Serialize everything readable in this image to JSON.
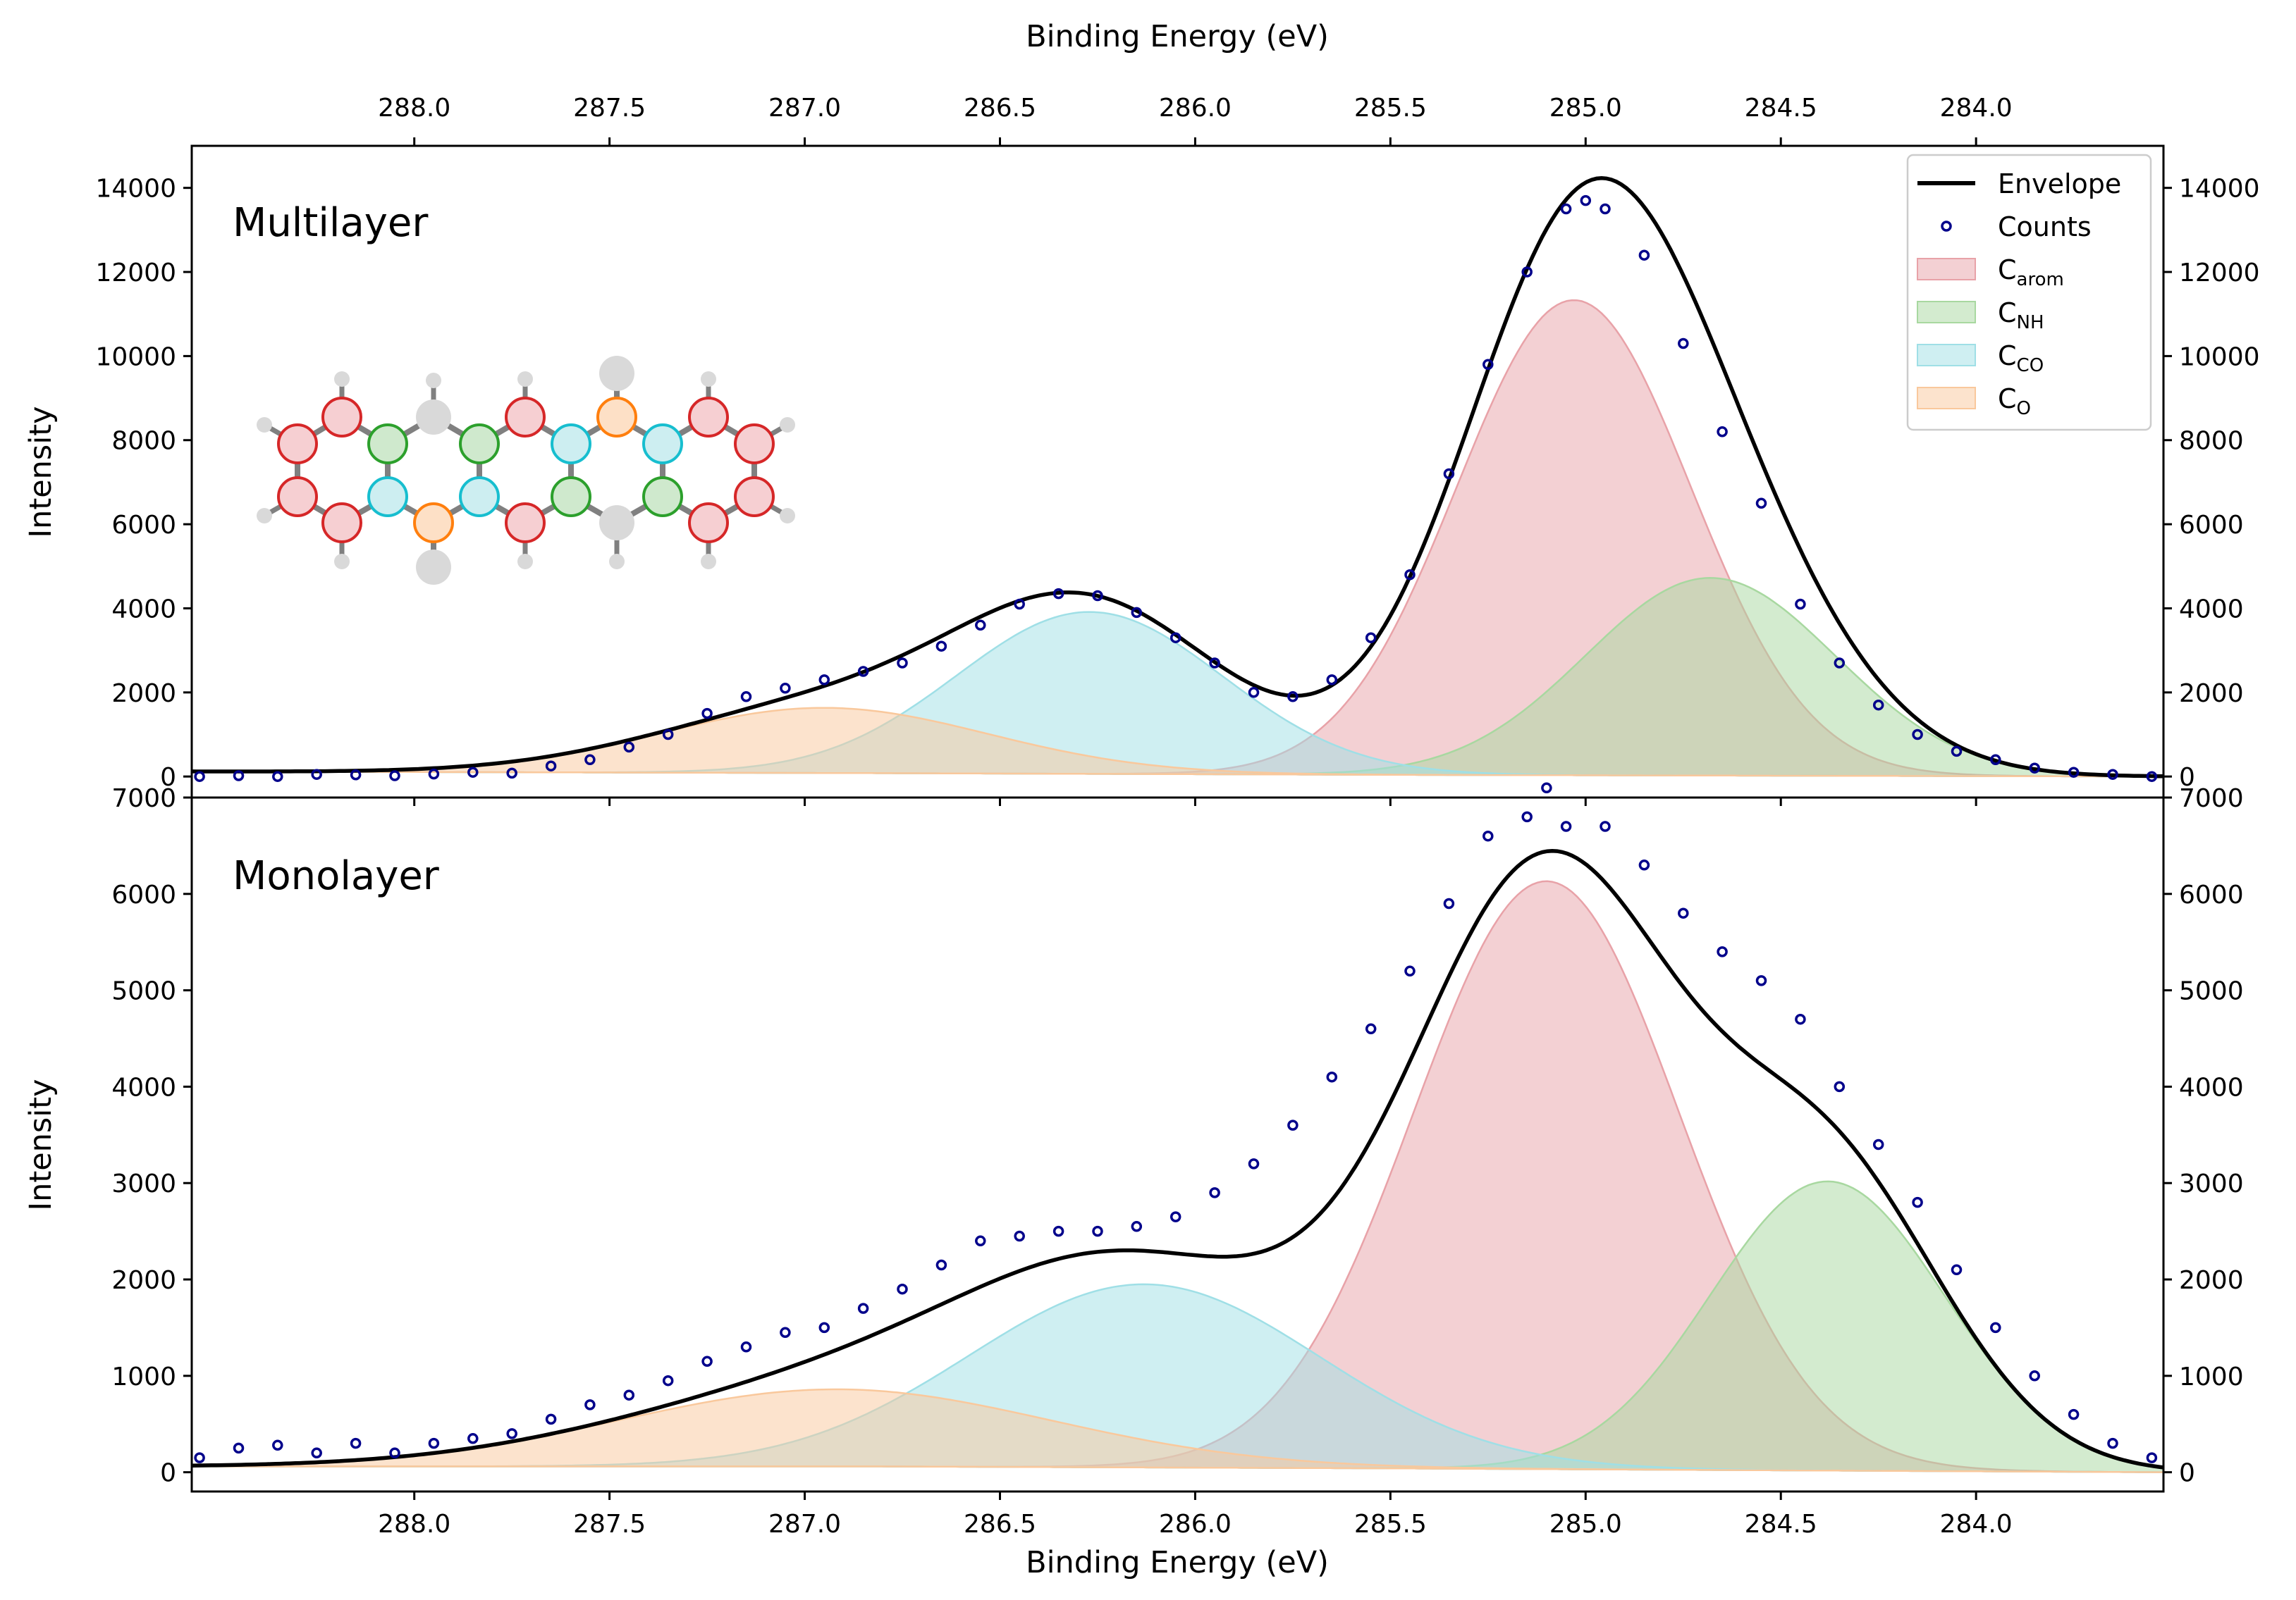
{
  "chart_data": [
    {
      "type": "area",
      "title": "Multilayer",
      "xlabel": "Binding Energy (eV)",
      "x2label": "Binding Energy (eV)",
      "ylabel": "Intensity",
      "xlim": [
        288.57,
        283.52
      ],
      "x_reversed": true,
      "ylim": [
        -500,
        15000
      ],
      "x_ticks": [
        "288.0",
        "287.5",
        "287.0",
        "286.5",
        "286.0",
        "285.5",
        "285.0",
        "284.5",
        "284.0"
      ],
      "y_ticks": [
        "0",
        "2000",
        "4000",
        "6000",
        "8000",
        "10000",
        "12000",
        "14000"
      ],
      "legend_position": "top-right",
      "legend": [
        {
          "name": "Envelope",
          "kind": "line",
          "color": "#000000"
        },
        {
          "name": "Counts",
          "kind": "marker",
          "color": "#00008b"
        },
        {
          "name": "C",
          "sub": "arom",
          "kind": "area",
          "color": "#e8a2a8"
        },
        {
          "name": "C",
          "sub": "NH",
          "kind": "area",
          "color": "#a8d8a0"
        },
        {
          "name": "C",
          "sub": "CO",
          "kind": "area",
          "color": "#9fdfe6"
        },
        {
          "name": "C",
          "sub": "O",
          "kind": "area",
          "color": "#f9c89c"
        }
      ],
      "components": [
        {
          "key": "C_arom",
          "color": "#e8a2a8",
          "center": 285.03,
          "amplitude": 11300,
          "sigma": 0.3
        },
        {
          "key": "C_NH",
          "color": "#a8d8a0",
          "center": 284.68,
          "amplitude": 4700,
          "sigma": 0.32
        },
        {
          "key": "C_CO",
          "color": "#9fdfe6",
          "center": 286.27,
          "amplitude": 3850,
          "sigma": 0.34
        },
        {
          "key": "C_O",
          "color": "#f9c89c",
          "center": 286.95,
          "amplitude": 1550,
          "sigma": 0.42
        }
      ],
      "background": [
        {
          "x": 288.57,
          "y": 120
        },
        {
          "x": 286.8,
          "y": 80
        },
        {
          "x": 285.5,
          "y": 40
        },
        {
          "x": 283.52,
          "y": 0
        }
      ],
      "counts": {
        "x": [
          288.55,
          288.45,
          288.35,
          288.25,
          288.15,
          288.05,
          287.95,
          287.85,
          287.75,
          287.65,
          287.55,
          287.45,
          287.35,
          287.25,
          287.15,
          287.05,
          286.95,
          286.85,
          286.75,
          286.65,
          286.55,
          286.45,
          286.35,
          286.25,
          286.15,
          286.05,
          285.95,
          285.85,
          285.75,
          285.65,
          285.55,
          285.45,
          285.35,
          285.25,
          285.15,
          285.05,
          285.0,
          284.95,
          284.85,
          284.75,
          284.65,
          284.55,
          284.45,
          284.35,
          284.25,
          284.15,
          284.05,
          283.95,
          283.85,
          283.75,
          283.65,
          283.55
        ],
        "y": [
          0,
          20,
          0,
          50,
          40,
          20,
          60,
          100,
          80,
          250,
          400,
          700,
          1000,
          1500,
          1900,
          2100,
          2300,
          2500,
          2700,
          3100,
          3600,
          4100,
          4350,
          4300,
          3900,
          3300,
          2700,
          2000,
          1900,
          2300,
          3300,
          4800,
          7200,
          9800,
          12000,
          13500,
          13700,
          13500,
          12400,
          10300,
          8200,
          6500,
          4100,
          2700,
          1700,
          1000,
          600,
          400,
          200,
          100,
          50,
          0
        ]
      }
    },
    {
      "type": "area",
      "title": "Monolayer",
      "xlabel": "Binding Energy (eV)",
      "ylabel": "Intensity",
      "xlim": [
        288.57,
        283.52
      ],
      "x_reversed": true,
      "ylim": [
        -200,
        7000
      ],
      "x_ticks": [
        "288.0",
        "287.5",
        "287.0",
        "286.5",
        "286.0",
        "285.5",
        "285.0",
        "284.5",
        "284.0"
      ],
      "y_ticks": [
        "0",
        "1000",
        "2000",
        "3000",
        "4000",
        "5000",
        "6000",
        "7000"
      ],
      "components": [
        {
          "key": "C_arom",
          "color": "#e8a2a8",
          "center": 285.1,
          "amplitude": 6100,
          "sigma": 0.34
        },
        {
          "key": "C_NH",
          "color": "#a8d8a0",
          "center": 284.38,
          "amplitude": 3000,
          "sigma": 0.3
        },
        {
          "key": "C_CO",
          "color": "#9fdfe6",
          "center": 286.13,
          "amplitude": 1900,
          "sigma": 0.45
        },
        {
          "key": "C_O",
          "color": "#f9c89c",
          "center": 286.92,
          "amplitude": 800,
          "sigma": 0.55
        }
      ],
      "background": [
        {
          "x": 288.57,
          "y": 60
        },
        {
          "x": 286.8,
          "y": 60
        },
        {
          "x": 285.5,
          "y": 40
        },
        {
          "x": 283.52,
          "y": 0
        }
      ],
      "counts": {
        "x": [
          288.55,
          288.45,
          288.35,
          288.25,
          288.15,
          288.05,
          287.95,
          287.85,
          287.75,
          287.65,
          287.55,
          287.45,
          287.35,
          287.25,
          287.15,
          287.05,
          286.95,
          286.85,
          286.75,
          286.65,
          286.55,
          286.45,
          286.35,
          286.25,
          286.15,
          286.05,
          285.95,
          285.85,
          285.75,
          285.65,
          285.55,
          285.45,
          285.35,
          285.25,
          285.15,
          285.1,
          285.05,
          284.95,
          284.85,
          284.75,
          284.65,
          284.55,
          284.45,
          284.35,
          284.25,
          284.15,
          284.05,
          283.95,
          283.85,
          283.75,
          283.65,
          283.55
        ],
        "y": [
          150,
          250,
          280,
          200,
          300,
          200,
          300,
          350,
          400,
          550,
          700,
          800,
          950,
          1150,
          1300,
          1450,
          1500,
          1700,
          1900,
          2150,
          2400,
          2450,
          2500,
          2500,
          2550,
          2650,
          2900,
          3200,
          3600,
          4100,
          4600,
          5200,
          5900,
          6600,
          6800,
          7100,
          6700,
          6700,
          6300,
          5800,
          5400,
          5100,
          4700,
          4000,
          3400,
          2800,
          2100,
          1500,
          1000,
          600,
          300,
          150
        ]
      }
    }
  ],
  "inset": {
    "atoms": [
      {
        "id": 1,
        "c": "#d62728",
        "f": "#f6cfd2"
      },
      {
        "id": 2,
        "c": "#d62728",
        "f": "#f6cfd2"
      },
      {
        "id": 3,
        "c": "#d62728",
        "f": "#f6cfd2"
      },
      {
        "id": 4,
        "c": "#d62728",
        "f": "#f6cfd2"
      },
      {
        "id": 5,
        "c": "#2ca02c",
        "f": "#cfe9cd"
      },
      {
        "id": 6,
        "c": "#17becf",
        "f": "#cdeef1"
      },
      {
        "id": 7,
        "c": "#ff7f0e",
        "f": "#fde0c6"
      },
      {
        "id": 8,
        "c": "#2ca02c",
        "f": "#cfe9cd"
      },
      {
        "id": 9,
        "c": "#17becf",
        "f": "#cdeef1"
      },
      {
        "id": 10,
        "c": "#d62728",
        "f": "#f6cfd2"
      },
      {
        "id": 11,
        "c": "#d62728",
        "f": "#f6cfd2"
      },
      {
        "id": 12,
        "c": "#17becf",
        "f": "#cdeef1"
      },
      {
        "id": 13,
        "c": "#2ca02c",
        "f": "#cfe9cd"
      },
      {
        "id": 14,
        "c": "#ff7f0e",
        "f": "#fde0c6"
      },
      {
        "id": 15,
        "c": "#17becf",
        "f": "#cdeef1"
      },
      {
        "id": 16,
        "c": "#2ca02c",
        "f": "#cfe9cd"
      },
      {
        "id": 17,
        "c": "#d62728",
        "f": "#f6cfd2"
      },
      {
        "id": 18,
        "c": "#d62728",
        "f": "#f6cfd2"
      },
      {
        "id": 19,
        "c": "#d62728",
        "f": "#f6cfd2"
      },
      {
        "id": 20,
        "c": "#d62728",
        "f": "#f6cfd2"
      }
    ],
    "neutral_color": "#d9d9d9",
    "bond_color": "#808080"
  }
}
